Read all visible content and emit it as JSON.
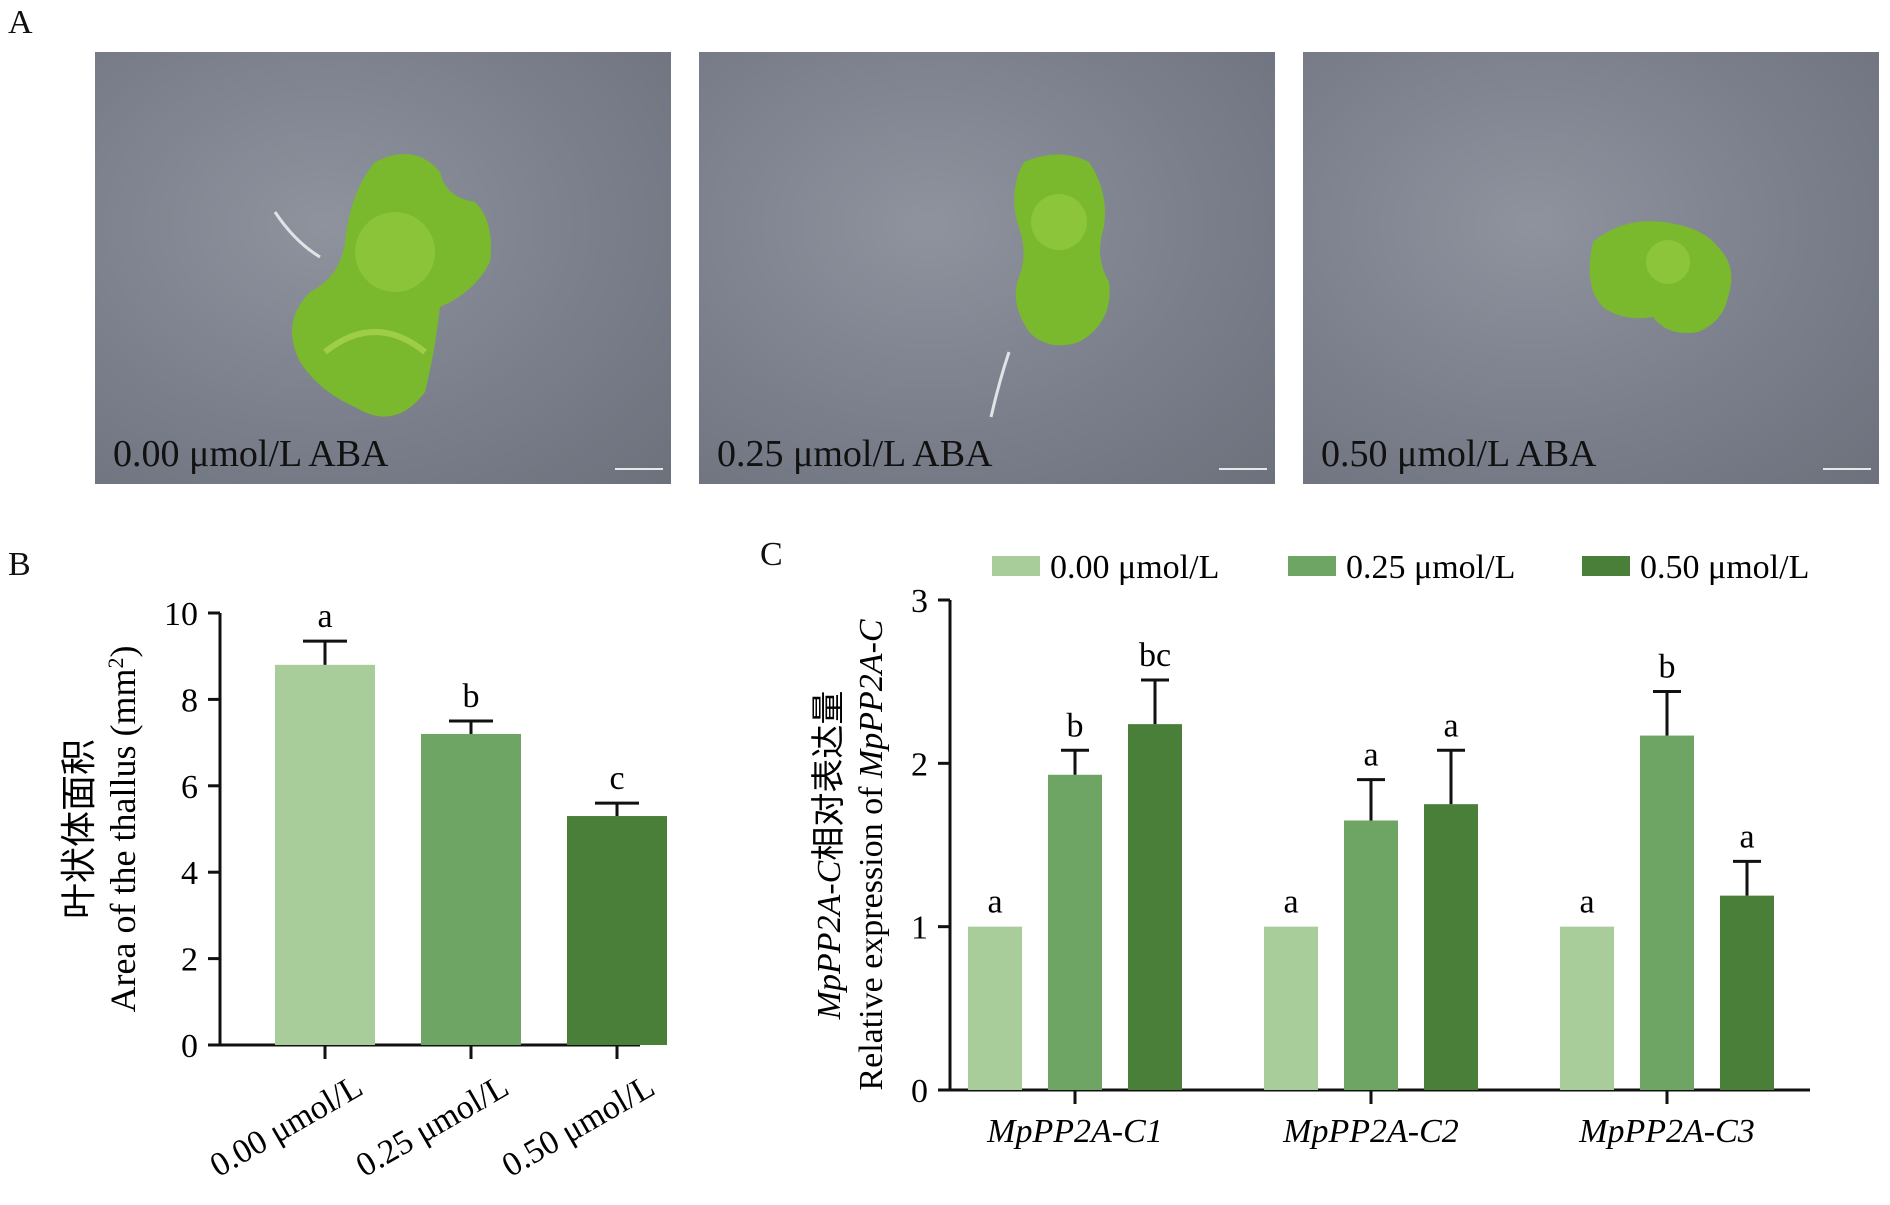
{
  "panels": {
    "a_label": "A",
    "b_label": "B",
    "c_label": "C"
  },
  "photos": [
    {
      "caption": "0.00 μmol/L ABA"
    },
    {
      "caption": "0.25 μmol/L ABA"
    },
    {
      "caption": "0.50 μmol/L ABA"
    }
  ],
  "colors": {
    "light": "#a9cd9a",
    "medium": "#6ea565",
    "dark": "#4a7f39",
    "thallus": "#7ab82e",
    "thallus_dark": "#5d9a22"
  },
  "chart_data": [
    {
      "type": "bar",
      "panel": "B",
      "categories": [
        "0.00 μmol/L",
        "0.25 μmol/L",
        "0.50 μmol/L"
      ],
      "values": [
        8.8,
        7.2,
        5.3
      ],
      "errors": [
        0.55,
        0.3,
        0.3
      ],
      "sig_letters": [
        "a",
        "b",
        "c"
      ],
      "ylabel_cn": "叶状体面积",
      "ylabel_en": "Area of the thallus (mm",
      "ylabel_sup": "2",
      "ylabel_close": ")",
      "ylim": [
        0,
        10
      ],
      "yticks": [
        "0",
        "2",
        "4",
        "6",
        "8",
        "10"
      ],
      "legend": "none",
      "grid": false
    },
    {
      "type": "bar",
      "panel": "C",
      "categories": [
        "MpPP2A-C1",
        "MpPP2A-C2",
        "MpPP2A-C3"
      ],
      "series": [
        {
          "name": "0.00 μmol/L",
          "values": [
            1.0,
            1.0,
            1.0
          ],
          "errors": [
            0,
            0,
            0
          ],
          "sig_letters": [
            "a",
            "a",
            "a"
          ]
        },
        {
          "name": "0.25 μmol/L",
          "values": [
            1.93,
            1.65,
            2.17
          ],
          "errors": [
            0.15,
            0.25,
            0.27
          ],
          "sig_letters": [
            "b",
            "a",
            "b"
          ]
        },
        {
          "name": "0.50 μmol/L",
          "values": [
            2.24,
            1.75,
            1.19
          ],
          "errors": [
            0.27,
            0.33,
            0.21
          ],
          "sig_letters": [
            "bc",
            "a",
            "a"
          ]
        }
      ],
      "ylabel_it1": "MpPP2A-C",
      "ylabel_cn": "相对表达量",
      "ylabel_en": "Relative expression of ",
      "ylabel_it2": "MpPP2A-C",
      "ylim": [
        0,
        3
      ],
      "yticks": [
        "0",
        "1",
        "2",
        "3"
      ],
      "legend": "top",
      "grid": false
    }
  ]
}
